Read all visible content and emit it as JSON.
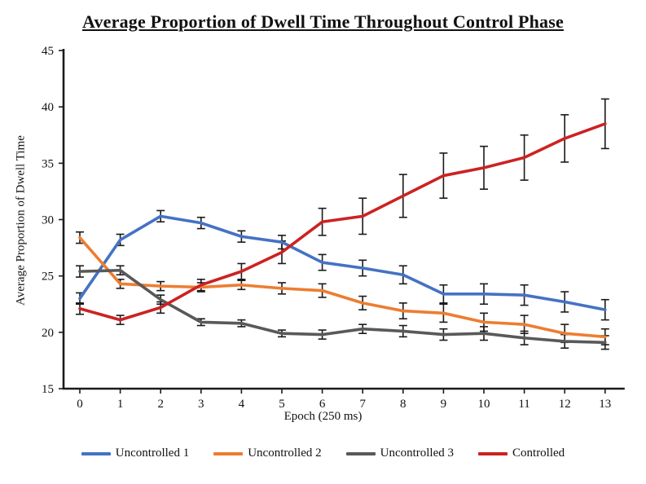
{
  "title": "Average Proportion of Dwell Time Throughout Control Phase",
  "chart_data": {
    "type": "line",
    "title": "Average Proportion of Dwell Time Throughout Control Phase",
    "xlabel": "Epoch (250 ms)",
    "ylabel": "Average Proportion of Dwell Time",
    "x": [
      0,
      1,
      2,
      3,
      4,
      5,
      6,
      7,
      8,
      9,
      10,
      11,
      12,
      13
    ],
    "ylim": [
      15,
      45
    ],
    "yticks": [
      15,
      20,
      25,
      30,
      35,
      40,
      45
    ],
    "grid": false,
    "legend_position": "bottom",
    "error_bars": true,
    "axis_color": "#1a1a1a",
    "series": [
      {
        "name": "Uncontrolled 1",
        "color": "#4472C4",
        "values": [
          23.0,
          28.2,
          30.3,
          29.7,
          28.5,
          28.0,
          26.2,
          25.7,
          25.1,
          23.4,
          23.4,
          23.3,
          22.7,
          22.0
        ],
        "errors": [
          0.5,
          0.5,
          0.5,
          0.5,
          0.5,
          0.6,
          0.7,
          0.7,
          0.8,
          0.8,
          0.9,
          0.9,
          0.9,
          0.9
        ]
      },
      {
        "name": "Uncontrolled 2",
        "color": "#ED7D31",
        "values": [
          28.4,
          24.3,
          24.1,
          24.0,
          24.2,
          23.9,
          23.7,
          22.6,
          21.9,
          21.7,
          20.9,
          20.7,
          19.9,
          19.6
        ],
        "errors": [
          0.5,
          0.4,
          0.4,
          0.4,
          0.4,
          0.5,
          0.6,
          0.6,
          0.7,
          0.8,
          0.8,
          0.8,
          0.8,
          0.7
        ]
      },
      {
        "name": "Uncontrolled 3",
        "color": "#595959",
        "values": [
          25.4,
          25.5,
          22.9,
          20.9,
          20.8,
          19.9,
          19.8,
          20.3,
          20.1,
          19.8,
          19.9,
          19.5,
          19.2,
          19.1
        ],
        "errors": [
          0.5,
          0.4,
          0.4,
          0.3,
          0.3,
          0.3,
          0.4,
          0.4,
          0.5,
          0.5,
          0.6,
          0.6,
          0.6,
          0.6
        ]
      },
      {
        "name": "Controlled",
        "color": "#CC2222",
        "values": [
          22.1,
          21.1,
          22.2,
          24.2,
          25.4,
          27.1,
          29.8,
          30.3,
          32.1,
          33.9,
          34.6,
          35.5,
          37.2,
          38.5
        ],
        "errors": [
          0.5,
          0.4,
          0.5,
          0.5,
          0.7,
          1.0,
          1.2,
          1.6,
          1.9,
          2.0,
          1.9,
          2.0,
          2.1,
          2.2
        ]
      }
    ]
  }
}
